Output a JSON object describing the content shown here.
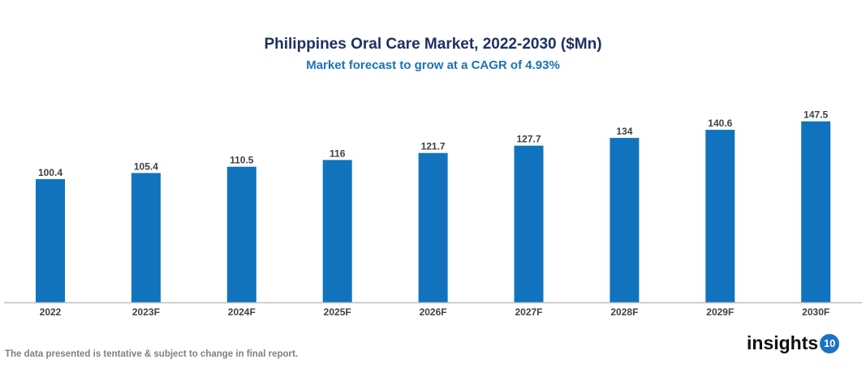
{
  "chart_data": {
    "type": "bar",
    "title": "Philippines Oral Care Market, 2022-2030 ($Mn)",
    "subtitle": "Market forecast to grow at a CAGR of 4.93%",
    "categories": [
      "2022",
      "2023F",
      "2024F",
      "2025F",
      "2026F",
      "2027F",
      "2028F",
      "2029F",
      "2030F"
    ],
    "values": [
      100.4,
      105.4,
      110.5,
      116,
      121.7,
      127.7,
      134,
      140.6,
      147.5
    ],
    "value_labels": [
      "100.4",
      "105.4",
      "110.5",
      "116",
      "121.7",
      "127.7",
      "134",
      "140.6",
      "147.5"
    ],
    "xlabel": "",
    "ylabel": "",
    "ylim": [
      0,
      160
    ],
    "grid": false,
    "bar_color": "#1173be",
    "data_labels": true
  },
  "footnote": "The data presented is tentative & subject to change in final report.",
  "logo": {
    "text": "insights",
    "badge": "10",
    "color": "#1a73c8"
  }
}
